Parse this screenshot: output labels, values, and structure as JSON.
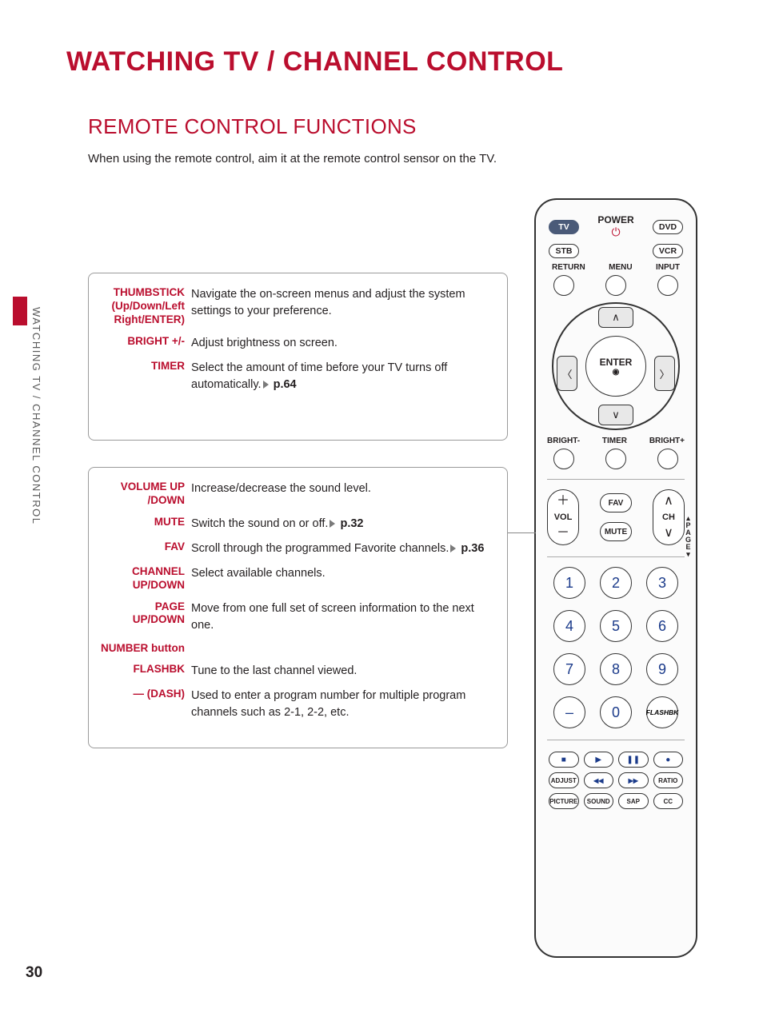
{
  "colors": {
    "accent": "#ba0e2e",
    "text": "#231f20",
    "side_text": "#5a5a5a",
    "box_border": "#9a9a9a",
    "num_color": "#1a3a8a",
    "pill_selected_bg": "#4a5a78"
  },
  "page_number": "30",
  "main_title": "WATCHING TV / CHANNEL CONTROL",
  "sub_title": "REMOTE CONTROL FUNCTIONS",
  "intro": "When using the remote control, aim it at the remote control sensor on the TV.",
  "side_tab": "WATCHING TV / CHANNEL CONTROL",
  "box1": {
    "rows": [
      {
        "label": "THUMBSTICK (Up/Down/Left Right/ENTER)",
        "text": "Navigate the on-screen menus and adjust the system settings to your preference."
      },
      {
        "label": "BRIGHT +/-",
        "text": "Adjust brightness on screen."
      },
      {
        "label": "TIMER",
        "text": "Select the amount of time before your TV turns off automatically.",
        "page": "p.64"
      }
    ]
  },
  "box2": {
    "rows": [
      {
        "label": "VOLUME UP /DOWN",
        "text": "Increase/decrease the sound level."
      },
      {
        "label": "MUTE",
        "text": "Switch the sound on or off.",
        "page": "p.32"
      },
      {
        "label": "FAV",
        "text": "Scroll through the programmed Favorite channels.",
        "page": "p.36"
      },
      {
        "label": "CHANNEL UP/DOWN",
        "text": "Select available channels."
      },
      {
        "label": "PAGE UP/DOWN",
        "text": "Move from one full set of screen information to the next one."
      },
      {
        "label": "NUMBER button",
        "text": ""
      },
      {
        "label": "FLASHBK",
        "text": "Tune to the last channel viewed."
      },
      {
        "label": "— (DASH)",
        "text": "Used to enter a program number for multiple program channels such as 2-1, 2-2, etc."
      }
    ]
  },
  "remote": {
    "top_pills": {
      "tv": "TV",
      "dvd": "DVD",
      "stb": "STB",
      "vcr": "VCR"
    },
    "top_labels": {
      "power": "POWER",
      "return": "RETURN",
      "menu": "MENU",
      "input": "INPUT"
    },
    "enter": "ENTER",
    "bright_minus": "BRIGHT-",
    "timer": "TIMER",
    "bright_plus": "BRIGHT+",
    "vol": "VOL",
    "ch": "CH",
    "fav": "FAV",
    "mute": "MUTE",
    "page_vert": "PAGE",
    "keypad": [
      "1",
      "2",
      "3",
      "4",
      "5",
      "6",
      "7",
      "8",
      "9",
      "–",
      "0",
      "FLASHBK"
    ],
    "transport": {
      "stop": "■",
      "play": "▶",
      "pause": "❚❚",
      "record": "●"
    },
    "row2": {
      "adjust": "ADJUST",
      "rew": "◀◀",
      "ff": "▶▶",
      "ratio": "RATIO"
    },
    "row3": {
      "picture": "PICTURE",
      "sound": "SOUND",
      "sap": "SAP",
      "cc": "CC"
    }
  }
}
